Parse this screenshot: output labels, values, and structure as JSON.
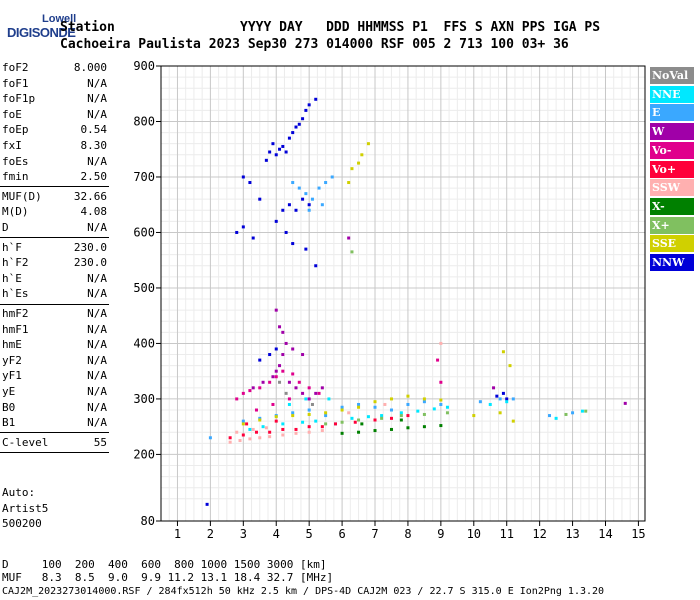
{
  "logo": {
    "line1": "Lowell",
    "line2": "DIGISONDE"
  },
  "header": {
    "row1": "Station                YYYY DAY   DDD HHMMSS P1  FFS S AXN PPS IGA PS",
    "row2": "Cachoeira Paulista 2023 Sep30 273 014000 RSF 005 2 713 100 03+ 36"
  },
  "params": [
    {
      "k": "foF2",
      "v": "8.000"
    },
    {
      "k": "foF1",
      "v": "N/A"
    },
    {
      "k": "foF1p",
      "v": "N/A"
    },
    {
      "k": "foE",
      "v": "N/A"
    },
    {
      "k": "foEp",
      "v": "0.54"
    },
    {
      "k": "fxI",
      "v": "8.30"
    },
    {
      "k": "foEs",
      "v": "N/A"
    },
    {
      "k": "fmin",
      "v": "2.50"
    },
    {
      "k": "MUF(D)",
      "v": "32.66"
    },
    {
      "k": "M(D)",
      "v": "4.08"
    },
    {
      "k": "D",
      "v": "N/A"
    },
    {
      "k": "h`F",
      "v": "230.0"
    },
    {
      "k": "h`F2",
      "v": "230.0"
    },
    {
      "k": "h`E",
      "v": "N/A"
    },
    {
      "k": "h`Es",
      "v": "N/A"
    },
    {
      "k": "hmF2",
      "v": "N/A"
    },
    {
      "k": "hmF1",
      "v": "N/A"
    },
    {
      "k": "hmE",
      "v": "N/A"
    },
    {
      "k": "yF2",
      "v": "N/A"
    },
    {
      "k": "yF1",
      "v": "N/A"
    },
    {
      "k": "yE",
      "v": "N/A"
    },
    {
      "k": "B0",
      "v": "N/A"
    },
    {
      "k": "B1",
      "v": "N/A"
    },
    {
      "k": "C-level",
      "v": "55"
    }
  ],
  "auto": {
    "line1": "Auto:",
    "line2": "Artist5",
    "line3": "500200"
  },
  "legend": [
    {
      "label": "NoVal",
      "color": "#8c8c8c"
    },
    {
      "label": "NNE",
      "color": "#00e8ff"
    },
    {
      "label": "E",
      "color": "#3aa8ff"
    },
    {
      "label": "W",
      "color": "#a000a8"
    },
    {
      "label": "Vo-",
      "color": "#e0008c"
    },
    {
      "label": "Vo+",
      "color": "#ff003a"
    },
    {
      "label": "SSW",
      "color": "#ffb0b0"
    },
    {
      "label": "X-",
      "color": "#008000"
    },
    {
      "label": "X+",
      "color": "#80c060"
    },
    {
      "label": "SSE",
      "color": "#d0d000"
    },
    {
      "label": "NNW",
      "color": "#0000d8"
    }
  ],
  "footer": {
    "row1": "D     100  200  400  600  800 1000 1500 3000 [km]",
    "row2": "MUF   8.3  8.5  9.0  9.9 11.2 13.1 18.4 32.7 [MHz]",
    "row3": "CAJ2M_2023273014000.RSF / 284fx512h 50 kHz 2.5 km / DPS-4D CAJ2M 023 / 22.7 S 315.0 E Ion2Png 1.3.20"
  },
  "chart_data": {
    "type": "scatter",
    "xlim": [
      0.5,
      15.2
    ],
    "ylim": [
      80,
      900
    ],
    "xticks": [
      1,
      2,
      3,
      4,
      5,
      6,
      7,
      8,
      9,
      10,
      11,
      12,
      13,
      14,
      15
    ],
    "yticks": [
      80,
      200,
      300,
      400,
      500,
      600,
      700,
      800,
      900
    ],
    "grid": true,
    "legend_position": "right",
    "series": [
      {
        "name": "NNW",
        "color": "#0000d8",
        "points": [
          [
            3.0,
            700
          ],
          [
            3.2,
            690
          ],
          [
            3.5,
            660
          ],
          [
            3.7,
            730
          ],
          [
            3.8,
            745
          ],
          [
            3.9,
            760
          ],
          [
            4.0,
            740
          ],
          [
            4.1,
            750
          ],
          [
            4.2,
            755
          ],
          [
            4.3,
            745
          ],
          [
            4.4,
            770
          ],
          [
            4.5,
            780
          ],
          [
            4.6,
            790
          ],
          [
            4.7,
            795
          ],
          [
            4.8,
            805
          ],
          [
            4.9,
            820
          ],
          [
            5.0,
            830
          ],
          [
            5.2,
            840
          ],
          [
            4.0,
            620
          ],
          [
            4.2,
            640
          ],
          [
            4.4,
            650
          ],
          [
            4.6,
            640
          ],
          [
            4.8,
            660
          ],
          [
            5.0,
            650
          ],
          [
            2.8,
            600
          ],
          [
            3.0,
            610
          ],
          [
            3.3,
            590
          ],
          [
            4.3,
            600
          ],
          [
            4.5,
            580
          ],
          [
            4.9,
            570
          ],
          [
            5.2,
            540
          ],
          [
            3.5,
            370
          ],
          [
            3.8,
            380
          ],
          [
            4.0,
            390
          ],
          [
            10.7,
            305
          ],
          [
            10.9,
            310
          ],
          [
            11.0,
            300
          ],
          [
            1.9,
            110
          ]
        ]
      },
      {
        "name": "E",
        "color": "#3aa8ff",
        "points": [
          [
            4.5,
            690
          ],
          [
            4.7,
            680
          ],
          [
            4.9,
            670
          ],
          [
            5.1,
            660
          ],
          [
            5.3,
            680
          ],
          [
            5.5,
            690
          ],
          [
            5.7,
            700
          ],
          [
            5.0,
            640
          ],
          [
            5.4,
            650
          ],
          [
            3.0,
            260
          ],
          [
            3.5,
            265
          ],
          [
            4.0,
            270
          ],
          [
            4.5,
            275
          ],
          [
            5.0,
            280
          ],
          [
            5.5,
            270
          ],
          [
            6.0,
            285
          ],
          [
            6.5,
            290
          ],
          [
            7.0,
            285
          ],
          [
            7.5,
            280
          ],
          [
            8.0,
            290
          ],
          [
            8.5,
            295
          ],
          [
            9.0,
            290
          ],
          [
            10.2,
            295
          ],
          [
            10.8,
            300
          ],
          [
            11.2,
            300
          ],
          [
            12.3,
            270
          ],
          [
            13.0,
            275
          ],
          [
            2.0,
            230
          ]
        ]
      },
      {
        "name": "NNE",
        "color": "#00e8ff",
        "points": [
          [
            3.2,
            245
          ],
          [
            3.6,
            250
          ],
          [
            4.2,
            255
          ],
          [
            4.8,
            258
          ],
          [
            5.2,
            260
          ],
          [
            5.8,
            255
          ],
          [
            6.3,
            265
          ],
          [
            6.8,
            268
          ],
          [
            7.2,
            270
          ],
          [
            7.8,
            275
          ],
          [
            8.3,
            278
          ],
          [
            8.8,
            282
          ],
          [
            9.2,
            285
          ],
          [
            10.5,
            290
          ],
          [
            11.0,
            295
          ],
          [
            12.5,
            265
          ],
          [
            13.3,
            278
          ],
          [
            4.4,
            290
          ],
          [
            4.9,
            300
          ],
          [
            5.6,
            300
          ]
        ]
      },
      {
        "name": "W",
        "color": "#a000a8",
        "points": [
          [
            3.3,
            320
          ],
          [
            3.6,
            330
          ],
          [
            3.9,
            340
          ],
          [
            4.0,
            350
          ],
          [
            4.1,
            360
          ],
          [
            4.2,
            380
          ],
          [
            4.3,
            400
          ],
          [
            4.4,
            330
          ],
          [
            4.6,
            320
          ],
          [
            4.8,
            310
          ],
          [
            5.0,
            300
          ],
          [
            5.2,
            310
          ],
          [
            5.4,
            320
          ],
          [
            4.0,
            460
          ],
          [
            4.1,
            430
          ],
          [
            4.2,
            420
          ],
          [
            4.5,
            390
          ],
          [
            4.8,
            380
          ],
          [
            6.2,
            590
          ],
          [
            10.6,
            320
          ],
          [
            14.6,
            292
          ]
        ]
      },
      {
        "name": "Vo-",
        "color": "#e0008c",
        "points": [
          [
            2.8,
            300
          ],
          [
            3.0,
            310
          ],
          [
            3.2,
            315
          ],
          [
            3.5,
            320
          ],
          [
            3.8,
            330
          ],
          [
            4.0,
            340
          ],
          [
            4.2,
            350
          ],
          [
            4.5,
            345
          ],
          [
            4.7,
            330
          ],
          [
            5.0,
            320
          ],
          [
            5.3,
            310
          ],
          [
            3.4,
            280
          ],
          [
            3.9,
            290
          ],
          [
            4.4,
            300
          ],
          [
            9.0,
            330
          ],
          [
            8.9,
            370
          ]
        ]
      },
      {
        "name": "Vo+",
        "color": "#ff003a",
        "points": [
          [
            2.6,
            230
          ],
          [
            3.0,
            235
          ],
          [
            3.4,
            240
          ],
          [
            3.8,
            240
          ],
          [
            4.2,
            245
          ],
          [
            4.6,
            245
          ],
          [
            5.0,
            250
          ],
          [
            5.4,
            250
          ],
          [
            5.8,
            255
          ],
          [
            6.4,
            258
          ],
          [
            7.0,
            262
          ],
          [
            7.5,
            265
          ],
          [
            8.0,
            270
          ],
          [
            3.1,
            255
          ],
          [
            4.0,
            260
          ]
        ]
      },
      {
        "name": "SSW",
        "color": "#ffb0b0",
        "points": [
          [
            2.6,
            222
          ],
          [
            2.9,
            225
          ],
          [
            3.2,
            228
          ],
          [
            3.5,
            230
          ],
          [
            3.8,
            232
          ],
          [
            4.2,
            235
          ],
          [
            4.6,
            238
          ],
          [
            5.0,
            240
          ],
          [
            5.4,
            243
          ],
          [
            2.8,
            240
          ],
          [
            3.3,
            245
          ],
          [
            3.7,
            248
          ],
          [
            9.0,
            400
          ],
          [
            6.2,
            275
          ],
          [
            7.3,
            290
          ]
        ]
      },
      {
        "name": "X-",
        "color": "#008000",
        "points": [
          [
            6.0,
            238
          ],
          [
            6.5,
            240
          ],
          [
            7.0,
            243
          ],
          [
            7.5,
            245
          ],
          [
            8.0,
            248
          ],
          [
            8.5,
            250
          ],
          [
            9.0,
            252
          ],
          [
            6.6,
            255
          ],
          [
            7.8,
            262
          ]
        ]
      },
      {
        "name": "X+",
        "color": "#80c060",
        "points": [
          [
            5.5,
            255
          ],
          [
            6.0,
            258
          ],
          [
            6.5,
            262
          ],
          [
            7.2,
            265
          ],
          [
            7.8,
            270
          ],
          [
            8.5,
            272
          ],
          [
            9.2,
            275
          ],
          [
            12.8,
            272
          ],
          [
            13.4,
            278
          ],
          [
            6.3,
            565
          ]
        ]
      },
      {
        "name": "SSE",
        "color": "#d0d000",
        "points": [
          [
            6.8,
            760
          ],
          [
            6.6,
            740
          ],
          [
            6.5,
            725
          ],
          [
            6.3,
            715
          ],
          [
            6.2,
            690
          ],
          [
            3.0,
            255
          ],
          [
            3.5,
            262
          ],
          [
            4.0,
            268
          ],
          [
            4.5,
            270
          ],
          [
            5.0,
            272
          ],
          [
            5.5,
            275
          ],
          [
            6.0,
            280
          ],
          [
            6.5,
            285
          ],
          [
            7.0,
            295
          ],
          [
            7.5,
            300
          ],
          [
            8.0,
            305
          ],
          [
            8.5,
            300
          ],
          [
            9.0,
            298
          ],
          [
            10.0,
            270
          ],
          [
            10.8,
            275
          ],
          [
            11.2,
            260
          ],
          [
            10.9,
            385
          ],
          [
            11.1,
            360
          ]
        ]
      },
      {
        "name": "NoVal",
        "color": "#8c8c8c",
        "points": [
          [
            4.1,
            330
          ],
          [
            4.3,
            310
          ],
          [
            5.1,
            290
          ]
        ]
      }
    ]
  }
}
